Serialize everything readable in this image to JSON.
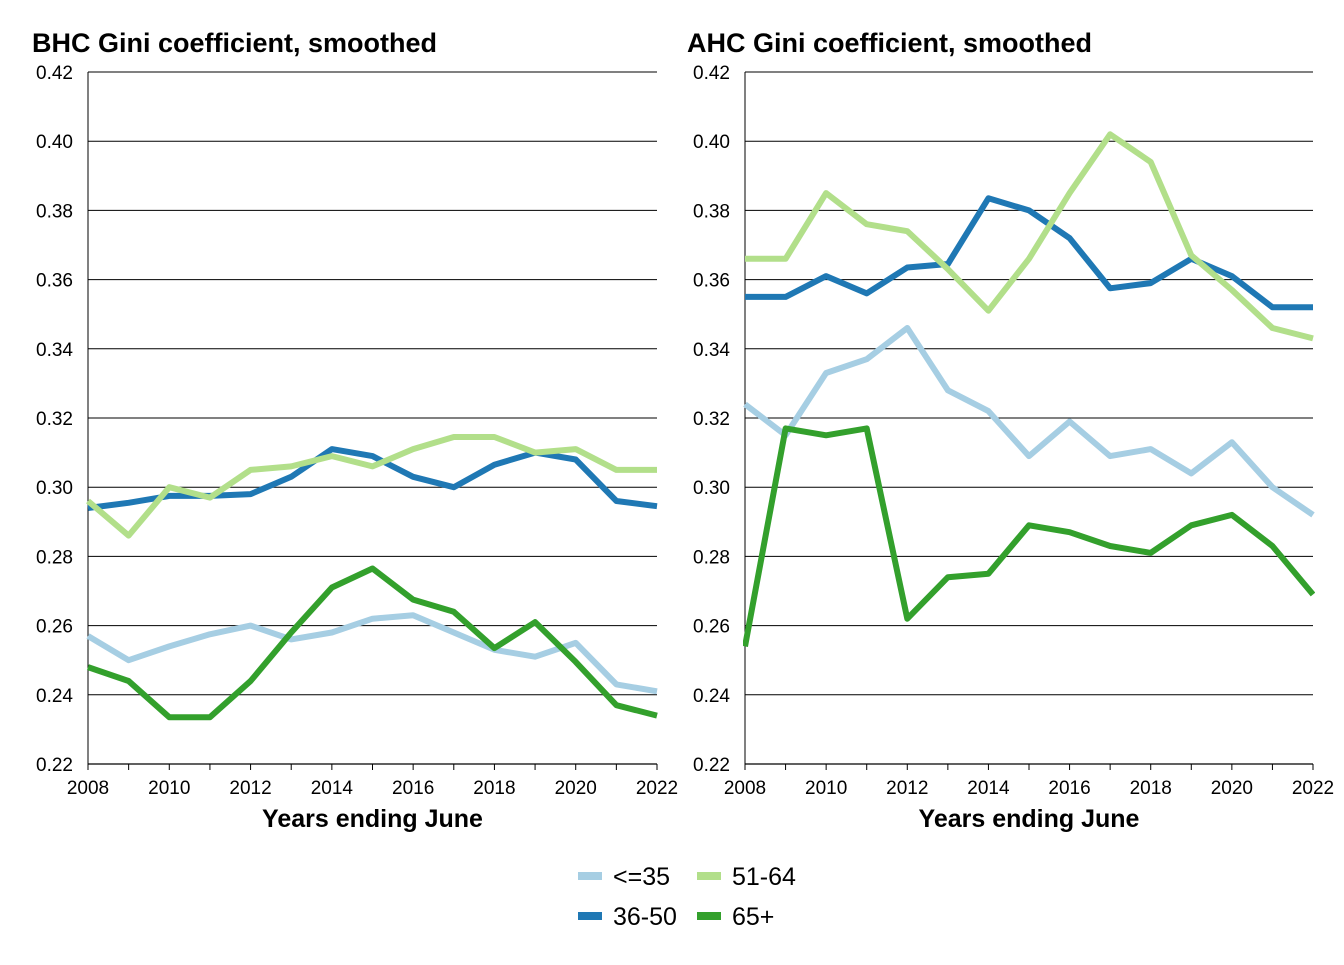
{
  "colors": {
    "le35": "#a6cee3",
    "36to50": "#1f78b4",
    "51to64": "#b2df8a",
    "65plus": "#33a02c"
  },
  "legend": [
    {
      "label": "<=35",
      "color": "#a6cee3"
    },
    {
      "label": "51-64",
      "color": "#b2df8a"
    },
    {
      "label": "36-50",
      "color": "#1f78b4"
    },
    {
      "label": "65+",
      "color": "#33a02c"
    }
  ],
  "chart_data": [
    {
      "type": "line",
      "title": "BHC Gini coefficient, smoothed",
      "xlabel": "Years ending June",
      "ylabel": "",
      "x": [
        2008,
        2009,
        2010,
        2011,
        2012,
        2013,
        2014,
        2015,
        2016,
        2017,
        2018,
        2019,
        2020,
        2021,
        2022
      ],
      "xticks": [
        "2008",
        "2010",
        "2012",
        "2014",
        "2016",
        "2018",
        "2020",
        "2022"
      ],
      "yticks": [
        "0.22",
        "0.24",
        "0.26",
        "0.28",
        "0.30",
        "0.32",
        "0.34",
        "0.36",
        "0.38",
        "0.40",
        "0.42"
      ],
      "ylim": [
        0.22,
        0.42
      ],
      "xlim": [
        2008,
        2022
      ],
      "grid": true,
      "series": [
        {
          "name": "<=35",
          "color": "#a6cee3",
          "values": [
            0.257,
            0.25,
            0.254,
            0.2575,
            0.26,
            0.256,
            0.258,
            0.262,
            0.263,
            0.258,
            0.253,
            0.251,
            0.255,
            0.243,
            0.241
          ]
        },
        {
          "name": "36-50",
          "color": "#1f78b4",
          "values": [
            0.294,
            0.2955,
            0.2975,
            0.2975,
            0.298,
            0.303,
            0.311,
            0.309,
            0.303,
            0.3,
            0.3065,
            0.31,
            0.308,
            0.296,
            0.2945
          ]
        },
        {
          "name": "51-64",
          "color": "#b2df8a",
          "values": [
            0.296,
            0.286,
            0.3,
            0.297,
            0.305,
            0.306,
            0.309,
            0.306,
            0.311,
            0.3145,
            0.3145,
            0.31,
            0.311,
            0.305,
            0.305
          ]
        },
        {
          "name": "65+",
          "color": "#33a02c",
          "values": [
            0.248,
            0.244,
            0.2335,
            0.2335,
            0.244,
            0.258,
            0.271,
            0.2765,
            0.2675,
            0.264,
            0.2535,
            0.261,
            0.2495,
            0.237,
            0.234
          ]
        }
      ]
    },
    {
      "type": "line",
      "title": "AHC Gini coefficient, smoothed",
      "xlabel": "Years ending June",
      "ylabel": "",
      "x": [
        2008,
        2009,
        2010,
        2011,
        2012,
        2013,
        2014,
        2015,
        2016,
        2017,
        2018,
        2019,
        2020,
        2021,
        2022
      ],
      "xticks": [
        "2008",
        "2010",
        "2012",
        "2014",
        "2016",
        "2018",
        "2020",
        "2022"
      ],
      "yticks": [
        "0.22",
        "0.24",
        "0.26",
        "0.28",
        "0.30",
        "0.32",
        "0.34",
        "0.36",
        "0.38",
        "0.40",
        "0.42"
      ],
      "ylim": [
        0.22,
        0.42
      ],
      "xlim": [
        2008,
        2022
      ],
      "grid": true,
      "series": [
        {
          "name": "<=35",
          "color": "#a6cee3",
          "values": [
            0.324,
            0.315,
            0.333,
            0.337,
            0.346,
            0.328,
            0.322,
            0.309,
            0.319,
            0.309,
            0.311,
            0.304,
            0.313,
            0.3,
            0.292
          ]
        },
        {
          "name": "36-50",
          "color": "#1f78b4",
          "values": [
            0.355,
            0.355,
            0.361,
            0.356,
            0.3635,
            0.3645,
            0.3835,
            0.38,
            0.372,
            0.3575,
            0.359,
            0.366,
            0.361,
            0.352,
            0.352
          ]
        },
        {
          "name": "51-64",
          "color": "#b2df8a",
          "values": [
            0.366,
            0.366,
            0.385,
            0.376,
            0.374,
            0.363,
            0.351,
            0.366,
            0.385,
            0.402,
            0.394,
            0.367,
            0.357,
            0.346,
            0.343
          ]
        },
        {
          "name": "65+",
          "color": "#33a02c",
          "values": [
            0.254,
            0.317,
            0.315,
            0.317,
            0.262,
            0.274,
            0.275,
            0.289,
            0.287,
            0.283,
            0.281,
            0.289,
            0.292,
            0.283,
            0.269
          ]
        }
      ]
    }
  ]
}
